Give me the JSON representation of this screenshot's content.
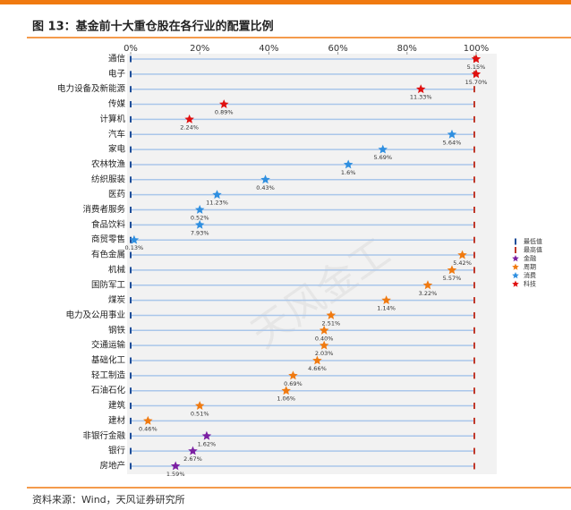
{
  "chart_data": {
    "type": "star_dot",
    "title": "图 13：基金前十大重仓股在各行业的配置比例",
    "source": "资料来源：Wind，天风证券研究所",
    "watermark": "天风金工",
    "categories": [
      "通信",
      "电子",
      "电力设备及新能源",
      "传媒",
      "计算机",
      "汽车",
      "家电",
      "农林牧渔",
      "纺织服装",
      "医药",
      "消费者服务",
      "食品饮料",
      "商贸零售",
      "有色金属",
      "机械",
      "国防军工",
      "煤炭",
      "电力及公用事业",
      "钢铁",
      "交通运输",
      "基础化工",
      "轻工制造",
      "石油石化",
      "建筑",
      "建材",
      "非银行金融",
      "银行",
      "房地产"
    ],
    "point_labels": [
      "5.15%",
      "15.70%",
      "11.33%",
      "0.89%",
      "2.24%",
      "5.64%",
      "5.69%",
      "1.6%",
      "0.43%",
      "11.23%",
      "0.52%",
      "7.93%",
      "0.13%",
      "5.42%",
      "5.57%",
      "3.22%",
      "1.14%",
      "2.51%",
      "0.40%",
      "2.03%",
      "4.66%",
      "0.69%",
      "1.06%",
      "0.51%",
      "0.46%",
      "1.62%",
      "2.67%",
      "1.59%"
    ],
    "series": [
      {
        "name": "金融",
        "color": "#7b1fa2",
        "values": [
          null,
          null,
          null,
          null,
          null,
          null,
          null,
          null,
          null,
          null,
          null,
          null,
          null,
          null,
          null,
          null,
          null,
          null,
          null,
          null,
          null,
          null,
          null,
          null,
          null,
          22,
          18,
          13
        ]
      },
      {
        "name": "周期",
        "color": "#f07a10",
        "values": [
          null,
          null,
          null,
          null,
          null,
          null,
          null,
          null,
          null,
          null,
          null,
          null,
          null,
          96,
          93,
          86,
          74,
          58,
          56,
          56,
          54,
          47,
          45,
          20,
          5,
          null,
          null,
          null
        ]
      },
      {
        "name": "消费",
        "color": "#2f8fe0",
        "values": [
          null,
          null,
          null,
          null,
          null,
          93,
          73,
          63,
          39,
          25,
          20,
          20,
          1,
          null,
          null,
          null,
          null,
          null,
          null,
          null,
          null,
          null,
          null,
          null,
          null,
          null,
          null,
          null
        ]
      },
      {
        "name": "科技",
        "color": "#e01010",
        "values": [
          100,
          100,
          84,
          27,
          17,
          null,
          null,
          null,
          null,
          null,
          null,
          null,
          null,
          null,
          null,
          null,
          null,
          null,
          null,
          null,
          null,
          null,
          null,
          null,
          null,
          null,
          null,
          null
        ]
      }
    ],
    "legend_markers": [
      {
        "name": "最低值",
        "color": "#1f4e99"
      },
      {
        "name": "最高值",
        "color": "#c0392b"
      }
    ],
    "xlim": [
      0,
      100
    ],
    "xticks": [
      {
        "value": 0,
        "label": "0%"
      },
      {
        "value": 20,
        "label": "20%"
      },
      {
        "value": 40,
        "label": "40%"
      },
      {
        "value": 60,
        "label": "60%"
      },
      {
        "value": 80,
        "label": "80%"
      },
      {
        "value": 100,
        "label": "100%"
      }
    ]
  }
}
